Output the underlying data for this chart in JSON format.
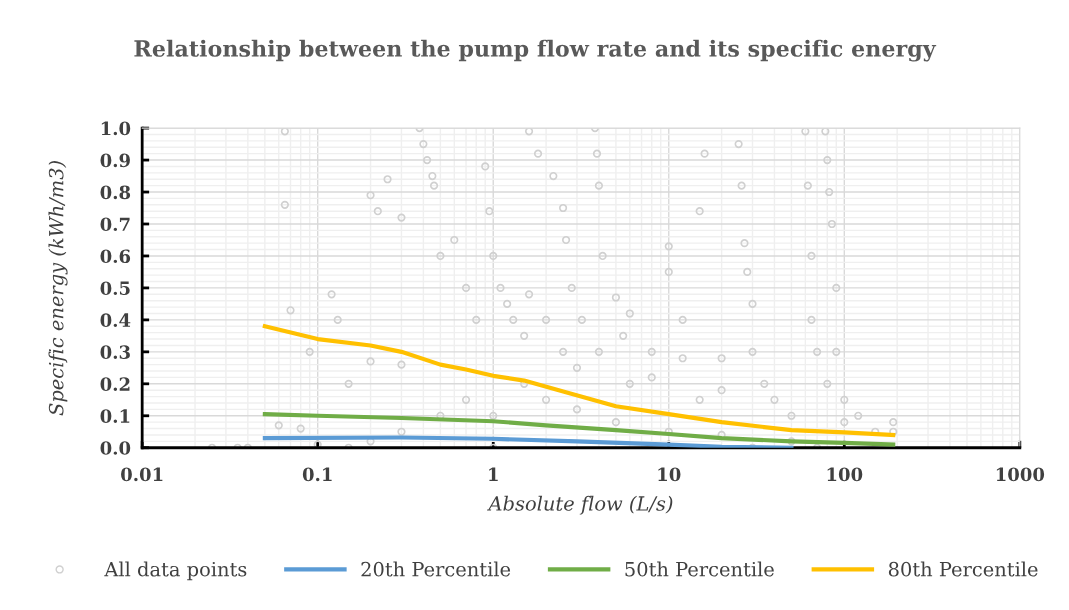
{
  "chart_data": {
    "type": "scatter",
    "title": "Relationship between the pump flow rate and its specific energy",
    "xlabel": "Absolute flow (L/s)",
    "ylabel": "Specific energy (kWh/m3)",
    "log": "x",
    "xlim": [
      0.01,
      1000
    ],
    "xticks": [
      0.01,
      0.1,
      1,
      10,
      100,
      1000
    ],
    "ylim": [
      0,
      1.0
    ],
    "yticks": [
      {
        "value": 0,
        "label": "0.0"
      },
      {
        "value": 0.1,
        "label": "0.1"
      },
      {
        "value": 0.2,
        "label": "0.2"
      },
      {
        "value": 0.3,
        "label": "0.3"
      },
      {
        "value": 0.4,
        "label": "0.4"
      },
      {
        "value": 0.5,
        "label": "0.5"
      },
      {
        "value": 0.6,
        "label": "0.6"
      },
      {
        "value": 0.7,
        "label": "0.7"
      },
      {
        "value": 0.8,
        "label": "0.8"
      },
      {
        "value": 0.9,
        "label": "0.9"
      },
      {
        "value": 1.0,
        "label": "1.0"
      }
    ],
    "grid": true,
    "legend": "bottom",
    "series": [
      {
        "name": "All data points",
        "marker": "circle",
        "color": "#d0d0d0",
        "x": [
          0.025,
          0.035,
          0.04,
          0.065,
          0.065,
          0.07,
          0.06,
          0.08,
          0.09,
          0.12,
          0.13,
          0.15,
          0.2,
          0.22,
          0.25,
          0.3,
          0.2,
          0.3,
          0.38,
          0.4,
          0.42,
          0.45,
          0.46,
          0.5,
          0.6,
          0.7,
          0.8,
          0.9,
          0.95,
          1.0,
          1.1,
          1.2,
          1.3,
          1.5,
          1.6,
          1.8,
          1.6,
          2,
          2.5,
          2.2,
          2.5,
          2.6,
          2.8,
          3.2,
          3.8,
          3.9,
          4,
          4.2,
          5,
          6,
          5.5,
          8,
          10,
          10,
          12,
          12,
          16,
          15,
          20,
          25,
          26,
          27,
          28,
          30,
          30,
          35,
          40,
          60,
          62,
          65,
          65,
          70,
          80,
          78,
          80,
          82,
          85,
          90,
          90,
          100,
          120,
          190,
          190,
          150,
          1,
          2,
          3,
          5,
          10,
          20,
          50,
          0.5,
          0.3,
          0.2,
          0.1,
          0.15,
          1,
          30,
          70,
          0.7,
          1.5,
          3,
          6,
          15,
          50,
          100,
          4,
          8,
          20
        ],
        "values": [
          0.0,
          0.0,
          0.0,
          0.99,
          0.76,
          0.43,
          0.07,
          0.06,
          0.3,
          0.48,
          0.4,
          0.2,
          0.79,
          0.74,
          0.84,
          0.72,
          0.27,
          0.26,
          1.0,
          0.95,
          0.9,
          0.85,
          0.82,
          0.6,
          0.65,
          0.5,
          0.4,
          0.88,
          0.74,
          0.6,
          0.5,
          0.45,
          0.4,
          0.35,
          0.99,
          0.92,
          0.48,
          0.4,
          0.3,
          0.85,
          0.75,
          0.65,
          0.5,
          0.4,
          1.0,
          0.92,
          0.82,
          0.6,
          0.47,
          0.42,
          0.35,
          0.3,
          0.63,
          0.55,
          0.4,
          0.28,
          0.92,
          0.74,
          0.28,
          0.95,
          0.82,
          0.64,
          0.55,
          0.45,
          0.3,
          0.2,
          0.15,
          0.99,
          0.82,
          0.6,
          0.4,
          0.3,
          0.2,
          0.99,
          0.9,
          0.8,
          0.7,
          0.5,
          0.3,
          0.15,
          0.1,
          0.08,
          0.05,
          0.05,
          0.1,
          0.15,
          0.12,
          0.08,
          0.05,
          0.04,
          0.02,
          0.1,
          0.05,
          0.02,
          0.01,
          0.0,
          0.0,
          0.0,
          0.0,
          0.15,
          0.2,
          0.25,
          0.2,
          0.15,
          0.1,
          0.08,
          0.3,
          0.22,
          0.18
        ]
      },
      {
        "name": "20th Percentile",
        "type": "line",
        "marker": "none",
        "color": "#5b9bd5",
        "x": [
          0.05,
          0.3,
          1,
          3,
          10,
          20,
          50
        ],
        "values": [
          0.03,
          0.032,
          0.028,
          0.02,
          0.01,
          0.003,
          0.0
        ]
      },
      {
        "name": "50th Percentile",
        "type": "line",
        "marker": "none",
        "color": "#70ad47",
        "x": [
          0.05,
          0.1,
          0.3,
          1,
          2,
          5,
          10,
          20,
          50,
          100,
          190
        ],
        "values": [
          0.105,
          0.1,
          0.093,
          0.083,
          0.07,
          0.055,
          0.043,
          0.03,
          0.02,
          0.015,
          0.01
        ]
      },
      {
        "name": "80th Percentile",
        "type": "line",
        "marker": "none",
        "color": "#ffc000",
        "x": [
          0.05,
          0.1,
          0.2,
          0.3,
          0.5,
          0.7,
          1,
          1.5,
          2.75,
          5,
          10,
          20,
          50,
          100,
          190
        ],
        "values": [
          0.38,
          0.34,
          0.32,
          0.3,
          0.26,
          0.245,
          0.225,
          0.21,
          0.17,
          0.13,
          0.105,
          0.08,
          0.055,
          0.048,
          0.04
        ]
      }
    ]
  }
}
